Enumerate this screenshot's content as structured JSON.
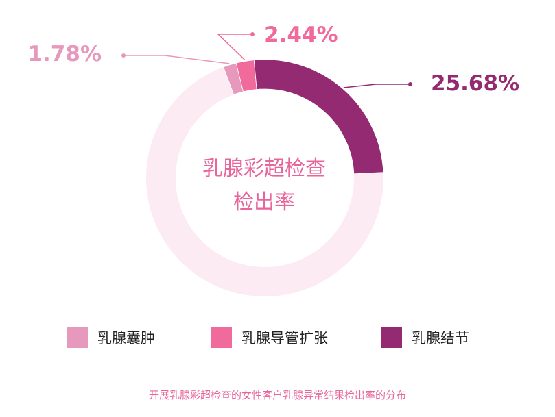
{
  "chart_data": {
    "type": "pie",
    "center_title_lines": [
      "乳腺彩超检查",
      "检出率"
    ],
    "series": [
      {
        "name": "乳腺囊肿",
        "value": 1.78,
        "label": "1.78%",
        "color": "#e799bd"
      },
      {
        "name": "乳腺导管扩张",
        "value": 2.44,
        "label": "2.44%",
        "color": "#f06a9b"
      },
      {
        "name": "乳腺结节",
        "value": 25.68,
        "label": "25.68%",
        "color": "#932a72"
      }
    ],
    "remainder_color": "#fcebf3",
    "caption": "开展乳腺彩超检查的女性客户乳腺异常结果检出率的分布"
  }
}
